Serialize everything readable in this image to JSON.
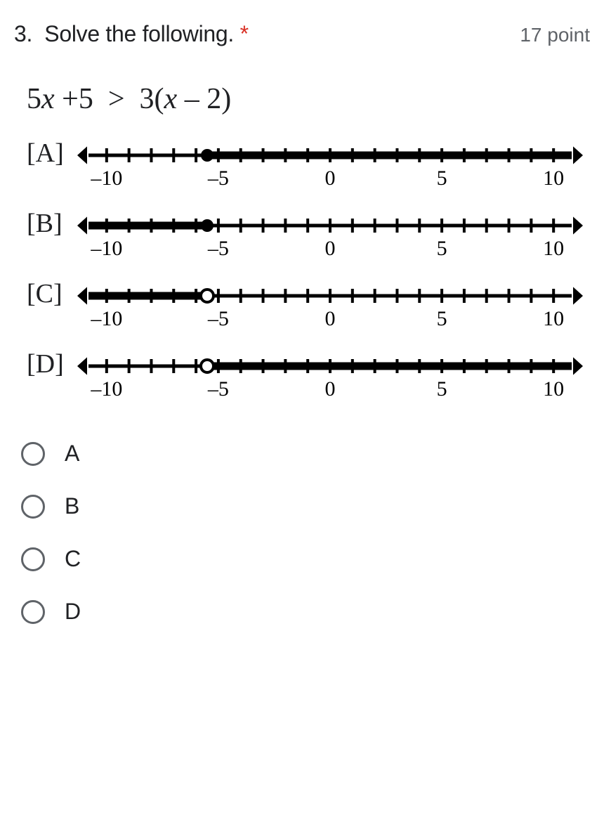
{
  "question": {
    "number": "3.",
    "prompt": "Solve the following.",
    "required_marker": "*",
    "points_label": "17 point"
  },
  "inequality": {
    "lhs_coef": "5",
    "lhs_var": "x",
    "lhs_plus": "+",
    "lhs_const": "5",
    "gt": ">",
    "rhs_coef": "3(",
    "rhs_var": "x",
    "rhs_rest": "– 2)"
  },
  "numberlines": {
    "axis": {
      "min": -11,
      "max": 11,
      "tick_step": 1,
      "labeled_ticks": [
        -10,
        -5,
        0,
        5,
        10
      ],
      "label_fontsize": 30,
      "tick_len_major": 10,
      "tick_len_minor": 10,
      "line_width": 5,
      "arrow_size": 14,
      "color": "#000000"
    },
    "items": [
      {
        "label": "[A]",
        "point_at": -5.5,
        "point_open": false,
        "shade": "right"
      },
      {
        "label": "[B]",
        "point_at": -5.5,
        "point_open": false,
        "shade": "left"
      },
      {
        "label": "[C]",
        "point_at": -5.5,
        "point_open": true,
        "shade": "left"
      },
      {
        "label": "[D]",
        "point_at": -5.5,
        "point_open": true,
        "shade": "right"
      }
    ]
  },
  "options": [
    {
      "value": "A",
      "label": "A"
    },
    {
      "value": "B",
      "label": "B"
    },
    {
      "value": "C",
      "label": "C"
    },
    {
      "value": "D",
      "label": "D"
    }
  ]
}
